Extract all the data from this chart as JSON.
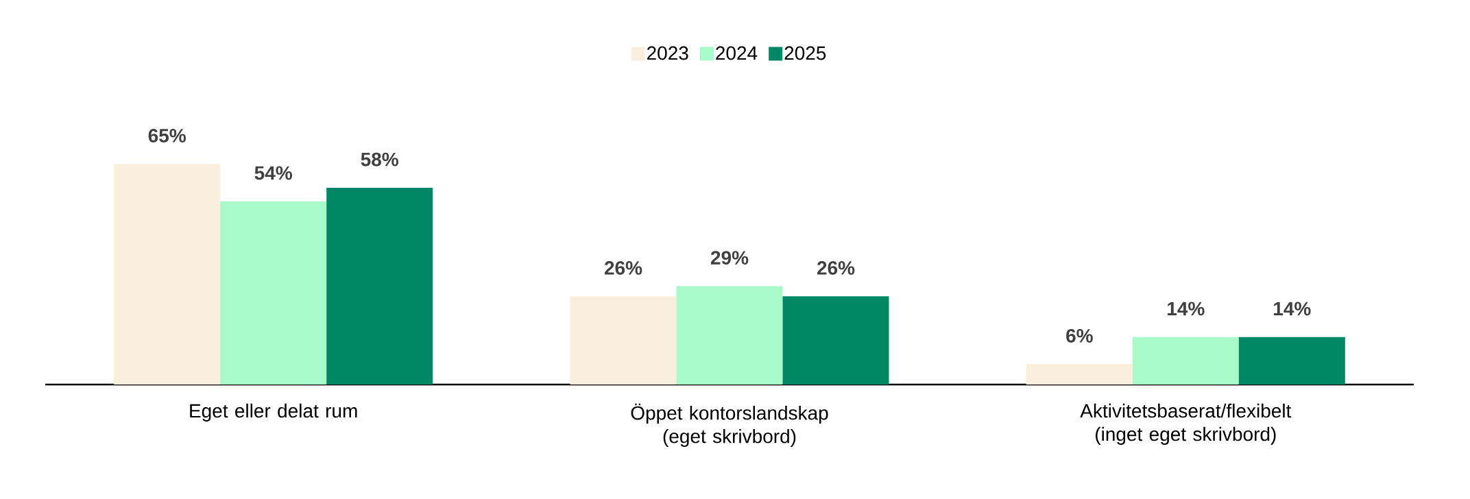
{
  "chart_data": {
    "type": "bar",
    "categories": [
      "Eget eller delat rum",
      "Öppet kontorslandskap (eget skrivbord)",
      "Aktivitetsbaserat/flexibelt (inget eget skrivbord)"
    ],
    "series": [
      {
        "name": "2023",
        "color": "#faefdc",
        "values": [
          65,
          26,
          6
        ],
        "value_labels": [
          "65%",
          "26%",
          "6%"
        ]
      },
      {
        "name": "2024",
        "color": "#a9f9c9",
        "values": [
          54,
          29,
          14
        ],
        "value_labels": [
          "54%",
          "29%",
          "14%"
        ]
      },
      {
        "name": "2025",
        "color": "#008866",
        "values": [
          58,
          26,
          14
        ],
        "value_labels": [
          "58%",
          "26%",
          "14%"
        ]
      }
    ],
    "legend": "top"
  }
}
